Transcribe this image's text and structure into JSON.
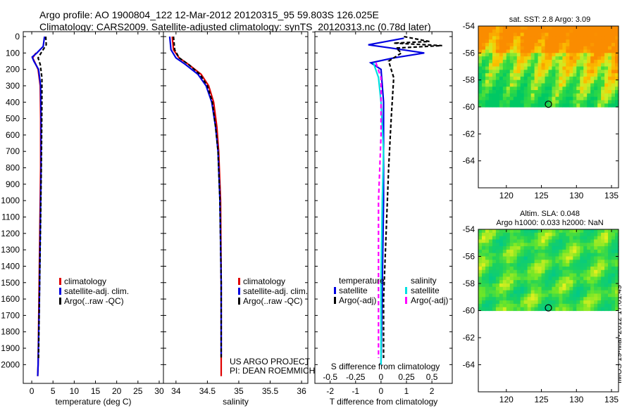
{
  "header": {
    "line1": "Argo profile: AO 1900804_122 12-Mar-2012 20120315_95 59.803S 126.025E",
    "line2": "Climatology: CARS2009. Satellite-adjusted climatology: synTS_20120313.nc (0.78d later)"
  },
  "credit": "IMOS 19-Mar-2012 17:01:49",
  "colors": {
    "climatology": "#e00000",
    "satellite": "#0000e0",
    "argo": "#000000",
    "sal_satellite": "#00e0e0",
    "sal_argo": "#ff00ff"
  },
  "chart_data": [
    {
      "type": "line",
      "xlabel": "temperature (deg C)",
      "ylabel": "",
      "xlim": [
        -2,
        31
      ],
      "ylim": [
        2080,
        0
      ],
      "xticks": [
        0,
        5,
        10,
        15,
        20,
        25,
        30
      ],
      "yticks": [
        0,
        100,
        200,
        300,
        400,
        500,
        600,
        700,
        800,
        900,
        1000,
        1100,
        1200,
        1300,
        1400,
        1500,
        1600,
        1700,
        1800,
        1900,
        2000
      ],
      "legend": [
        "climatology",
        "satellite-adj. clim.",
        "Argo(..raw -QC)"
      ],
      "series": [
        {
          "name": "climatology",
          "color": "#e00000",
          "dash": "",
          "points": [
            [
              1.0,
              100
            ],
            [
              0.2,
              130
            ],
            [
              0.6,
              150
            ],
            [
              1.5,
              200
            ],
            [
              2.0,
              300
            ],
            [
              2.1,
              500
            ],
            [
              2.1,
              800
            ],
            [
              1.9,
              1200
            ],
            [
              1.7,
              1600
            ],
            [
              1.5,
              2000
            ],
            [
              1.4,
              2070
            ]
          ]
        },
        {
          "name": "satellite-adj. clim.",
          "color": "#0000e0",
          "dash": "",
          "points": [
            [
              3.0,
              0
            ],
            [
              2.7,
              60
            ],
            [
              1.2,
              100
            ],
            [
              0.1,
              125
            ],
            [
              0.5,
              150
            ],
            [
              1.6,
              200
            ],
            [
              2.1,
              300
            ],
            [
              2.2,
              500
            ],
            [
              2.2,
              800
            ],
            [
              2.0,
              1200
            ],
            [
              1.8,
              1600
            ],
            [
              1.5,
              2000
            ],
            [
              1.4,
              2070
            ]
          ]
        },
        {
          "name": "Argo(..raw -QC)",
          "color": "#000000",
          "dash": "5,3",
          "points": [
            [
              3.3,
              0
            ],
            [
              3.4,
              50
            ],
            [
              2.2,
              100
            ],
            [
              1.5,
              130
            ],
            [
              2.0,
              170
            ],
            [
              2.4,
              250
            ],
            [
              2.4,
              400
            ],
            [
              2.3,
              700
            ],
            [
              2.1,
              1100
            ],
            [
              1.8,
              1600
            ],
            [
              1.6,
              1960
            ]
          ]
        }
      ]
    },
    {
      "type": "line",
      "xlabel": "salinity",
      "ylabel": "",
      "xlim": [
        33.8,
        36.1
      ],
      "ylim": [
        2080,
        0
      ],
      "xticks": [
        34,
        34.5,
        35,
        35.5,
        36
      ],
      "legend": [
        "climatology",
        "satellite-adj. clim.",
        "Argo(..raw -QC)"
      ],
      "annotation": [
        "US ARGO PROJECT",
        "PI: DEAN ROEMMICH"
      ],
      "series": [
        {
          "name": "climatology",
          "color": "#e00000",
          "dash": "",
          "points": [
            [
              33.94,
              0
            ],
            [
              33.96,
              80
            ],
            [
              34.05,
              130
            ],
            [
              34.2,
              170
            ],
            [
              34.4,
              230
            ],
            [
              34.52,
              300
            ],
            [
              34.6,
              400
            ],
            [
              34.65,
              550
            ],
            [
              34.68,
              700
            ],
            [
              34.71,
              1000
            ],
            [
              34.72,
              1500
            ],
            [
              34.72,
              2000
            ],
            [
              34.72,
              2070
            ]
          ]
        },
        {
          "name": "satellite-adj. clim.",
          "color": "#0000e0",
          "dash": "",
          "points": [
            [
              33.9,
              0
            ],
            [
              33.92,
              80
            ],
            [
              34.0,
              130
            ],
            [
              34.15,
              170
            ],
            [
              34.35,
              230
            ],
            [
              34.48,
              300
            ],
            [
              34.57,
              400
            ],
            [
              34.63,
              550
            ],
            [
              34.67,
              700
            ],
            [
              34.7,
              1000
            ],
            [
              34.72,
              1500
            ],
            [
              34.72,
              1950
            ]
          ]
        },
        {
          "name": "Argo(..raw -QC)",
          "color": "#000000",
          "dash": "5,3",
          "points": [
            [
              33.96,
              0
            ],
            [
              33.98,
              80
            ],
            [
              34.05,
              130
            ],
            [
              34.2,
              170
            ],
            [
              34.38,
              230
            ],
            [
              34.5,
              300
            ],
            [
              34.58,
              400
            ],
            [
              34.63,
              550
            ],
            [
              34.67,
              700
            ],
            [
              34.7,
              1000
            ],
            [
              34.72,
              1500
            ],
            [
              34.72,
              1960
            ]
          ]
        }
      ]
    },
    {
      "type": "line",
      "xlabel": "T difference from climatology",
      "xlabel_top": "S difference from climatology",
      "xlim": [
        -2.6,
        2.8
      ],
      "ylim": [
        2080,
        0
      ],
      "xticks": [
        -2,
        -1,
        0,
        1,
        2
      ],
      "xtick_labels_top": [
        "-0.5",
        "-0.25",
        "0",
        "0.25",
        "0.5"
      ],
      "legend": {
        "left_title": "temperature",
        "right_title": "salinity",
        "left": [
          "satellite",
          "Argo(-adj)"
        ],
        "right": [
          "satellite",
          "Argo(-adj)"
        ]
      },
      "series": [
        {
          "name": "temperature satellite",
          "color": "#0000e0",
          "dash": "",
          "points": [
            [
              0.9,
              10
            ],
            [
              -0.5,
              50
            ],
            [
              0.4,
              70
            ],
            [
              1.7,
              100
            ],
            [
              0.5,
              130
            ],
            [
              -0.4,
              160
            ],
            [
              0.0,
              200
            ],
            [
              0.1,
              400
            ],
            [
              0.1,
              1000
            ],
            [
              0.05,
              1500
            ],
            [
              0.0,
              2000
            ]
          ]
        },
        {
          "name": "temperature Argo(-adj)",
          "color": "#000000",
          "dash": "5,3",
          "points": [
            [
              0.9,
              0
            ],
            [
              1.9,
              30
            ],
            [
              0.5,
              40
            ],
            [
              2.4,
              55
            ],
            [
              0.6,
              70
            ],
            [
              0.8,
              100
            ],
            [
              0.3,
              150
            ],
            [
              0.5,
              250
            ],
            [
              0.4,
              500
            ],
            [
              0.3,
              800
            ],
            [
              0.2,
              1200
            ],
            [
              0.1,
              1600
            ],
            [
              0.1,
              1960
            ]
          ]
        },
        {
          "name": "salinity satellite",
          "color": "#00e0e0",
          "dash": "",
          "points": [
            [
              -0.3,
              160
            ],
            [
              -0.1,
              250
            ],
            [
              0.0,
              400
            ],
            [
              0.1,
              700
            ],
            [
              0.05,
              1000
            ],
            [
              0.0,
              1500
            ],
            [
              0.0,
              2000
            ]
          ]
        },
        {
          "name": "salinity Argo(-adj)",
          "color": "#ff00ff",
          "dash": "6,4",
          "points": [
            [
              -0.2,
              160
            ],
            [
              0.0,
              250
            ],
            [
              0.0,
              600
            ],
            [
              -0.1,
              1000
            ],
            [
              -0.1,
              1500
            ],
            [
              -0.1,
              1960
            ]
          ]
        }
      ]
    },
    {
      "type": "heatmap",
      "title": "sat. SST: 2.8 Argo: 3.09",
      "xlim": [
        116,
        136
      ],
      "ylim": [
        -66,
        -54
      ],
      "xticks": [
        120,
        125,
        130,
        135
      ],
      "yticks": [
        -54,
        -56,
        -58,
        -60,
        -62,
        -64
      ],
      "marker": [
        126.0,
        -59.8
      ],
      "data_extent_lat": [
        -60,
        -54
      ],
      "palette": "sst"
    },
    {
      "type": "heatmap",
      "title": "Altim. SLA: 0.048",
      "subtitle": "Argo h1000: 0.033 h2000: NaN",
      "xlim": [
        116,
        136
      ],
      "ylim": [
        -66,
        -54
      ],
      "xticks": [
        120,
        125,
        130,
        135
      ],
      "yticks": [
        -54,
        -56,
        -58,
        -60,
        -62,
        -64
      ],
      "marker": [
        126.0,
        -59.8
      ],
      "data_extent_lat": [
        -60,
        -54
      ],
      "palette": "sla"
    }
  ]
}
